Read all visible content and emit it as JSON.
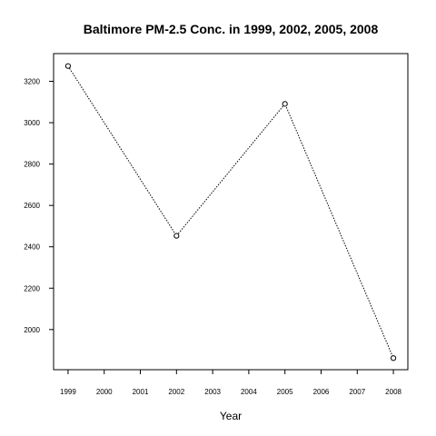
{
  "chart_data": {
    "type": "line",
    "title": "Baltimore PM-2.5 Conc. in 1999, 2002, 2005, 2008",
    "xlabel": "Year",
    "ylabel": "",
    "x_ticks": [
      "1999",
      "2000",
      "2001",
      "2002",
      "2003",
      "2004",
      "2005",
      "2006",
      "2007",
      "2008"
    ],
    "y_ticks": [
      "2000",
      "2200",
      "2400",
      "2600",
      "2800",
      "3000",
      "3200"
    ],
    "xlim": [
      1998.6,
      2008.4
    ],
    "ylim": [
      1806,
      3334
    ],
    "grid": false,
    "series": [
      {
        "x": [
          1999,
          2002,
          2005,
          2008
        ],
        "y": [
          3274,
          2453,
          3091,
          1862
        ]
      }
    ],
    "line_style": "dotted",
    "marker": "open-circle",
    "color": "#000000"
  }
}
